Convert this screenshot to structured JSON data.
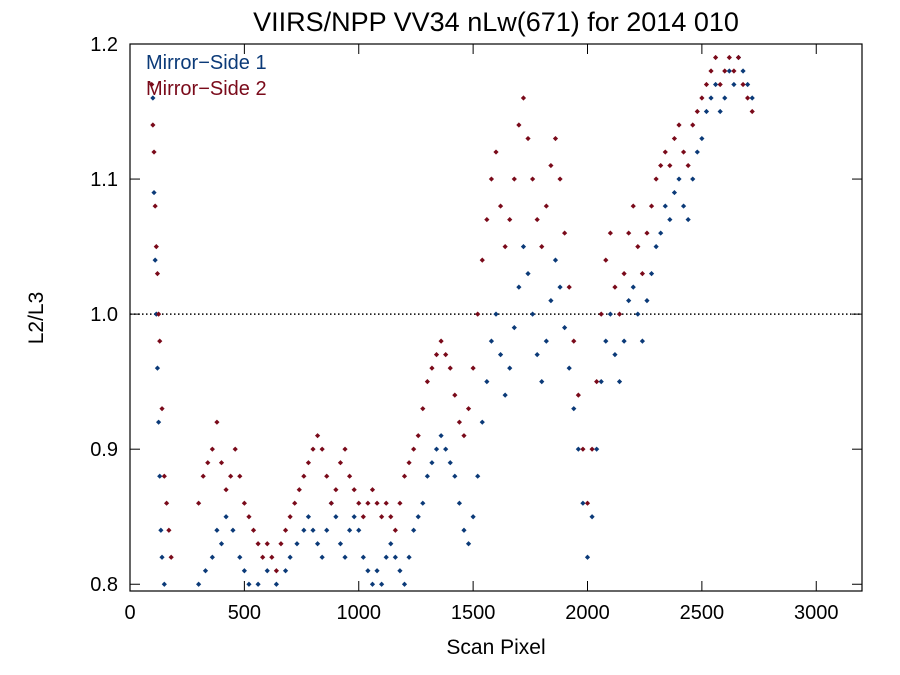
{
  "chart_data": {
    "type": "scatter",
    "title": "VIIRS/NPP VV34 nLw(671) for 2014 010",
    "xlabel": "Scan Pixel",
    "ylabel": "L2/L3",
    "xlim": [
      0,
      3200
    ],
    "ylim": [
      0.795,
      1.2
    ],
    "xticks": [
      0,
      500,
      1000,
      1500,
      2000,
      2500,
      3000
    ],
    "yticks": [
      0.8,
      0.9,
      1.0,
      1.1,
      1.2
    ],
    "xtick_labels": [
      "0",
      "500",
      "1000",
      "1500",
      "2000",
      "2500",
      "3000"
    ],
    "ytick_labels": [
      "0.8",
      "0.9",
      "1.0",
      "1.1",
      "1.2"
    ],
    "reference_line": {
      "y": 1.0,
      "style": "dotted"
    },
    "legend_position": "top-left",
    "grid": false,
    "series": [
      {
        "name": "Mirror−Side 1",
        "color": "#0b3a78",
        "marker": "diamond",
        "points": [
          [
            100,
            1.16
          ],
          [
            105,
            1.09
          ],
          [
            110,
            1.04
          ],
          [
            115,
            1.0
          ],
          [
            120,
            0.96
          ],
          [
            125,
            0.92
          ],
          [
            130,
            0.88
          ],
          [
            135,
            0.84
          ],
          [
            140,
            0.82
          ],
          [
            150,
            0.8
          ],
          [
            300,
            0.8
          ],
          [
            330,
            0.81
          ],
          [
            360,
            0.82
          ],
          [
            380,
            0.84
          ],
          [
            400,
            0.83
          ],
          [
            420,
            0.85
          ],
          [
            450,
            0.84
          ],
          [
            480,
            0.82
          ],
          [
            500,
            0.81
          ],
          [
            520,
            0.8
          ],
          [
            560,
            0.8
          ],
          [
            600,
            0.81
          ],
          [
            640,
            0.8
          ],
          [
            680,
            0.81
          ],
          [
            700,
            0.82
          ],
          [
            730,
            0.83
          ],
          [
            760,
            0.84
          ],
          [
            780,
            0.85
          ],
          [
            800,
            0.84
          ],
          [
            820,
            0.83
          ],
          [
            840,
            0.82
          ],
          [
            860,
            0.84
          ],
          [
            880,
            0.86
          ],
          [
            900,
            0.85
          ],
          [
            920,
            0.83
          ],
          [
            940,
            0.82
          ],
          [
            960,
            0.84
          ],
          [
            980,
            0.85
          ],
          [
            1000,
            0.84
          ],
          [
            1020,
            0.82
          ],
          [
            1040,
            0.81
          ],
          [
            1060,
            0.8
          ],
          [
            1080,
            0.81
          ],
          [
            1100,
            0.8
          ],
          [
            1120,
            0.82
          ],
          [
            1140,
            0.83
          ],
          [
            1160,
            0.82
          ],
          [
            1180,
            0.81
          ],
          [
            1200,
            0.8
          ],
          [
            1220,
            0.82
          ],
          [
            1240,
            0.84
          ],
          [
            1260,
            0.85
          ],
          [
            1280,
            0.86
          ],
          [
            1300,
            0.88
          ],
          [
            1320,
            0.89
          ],
          [
            1340,
            0.9
          ],
          [
            1360,
            0.91
          ],
          [
            1380,
            0.9
          ],
          [
            1400,
            0.89
          ],
          [
            1420,
            0.88
          ],
          [
            1440,
            0.86
          ],
          [
            1460,
            0.84
          ],
          [
            1480,
            0.83
          ],
          [
            1500,
            0.85
          ],
          [
            1520,
            0.88
          ],
          [
            1540,
            0.92
          ],
          [
            1560,
            0.95
          ],
          [
            1580,
            0.98
          ],
          [
            1600,
            1.0
          ],
          [
            1620,
            0.97
          ],
          [
            1640,
            0.94
          ],
          [
            1660,
            0.96
          ],
          [
            1680,
            0.99
          ],
          [
            1700,
            1.02
          ],
          [
            1720,
            1.05
          ],
          [
            1740,
            1.03
          ],
          [
            1760,
            1.0
          ],
          [
            1780,
            0.97
          ],
          [
            1800,
            0.95
          ],
          [
            1820,
            0.98
          ],
          [
            1840,
            1.01
          ],
          [
            1860,
            1.04
          ],
          [
            1880,
            1.02
          ],
          [
            1900,
            0.99
          ],
          [
            1920,
            0.96
          ],
          [
            1940,
            0.93
          ],
          [
            1960,
            0.9
          ],
          [
            1980,
            0.86
          ],
          [
            2000,
            0.82
          ],
          [
            2020,
            0.85
          ],
          [
            2040,
            0.9
          ],
          [
            2060,
            0.95
          ],
          [
            2080,
            0.98
          ],
          [
            2100,
            1.0
          ],
          [
            2120,
            0.97
          ],
          [
            2140,
            0.95
          ],
          [
            2160,
            0.98
          ],
          [
            2180,
            1.01
          ],
          [
            2200,
            1.02
          ],
          [
            2220,
            1.0
          ],
          [
            2240,
            0.98
          ],
          [
            2260,
            1.01
          ],
          [
            2280,
            1.03
          ],
          [
            2300,
            1.05
          ],
          [
            2320,
            1.06
          ],
          [
            2340,
            1.08
          ],
          [
            2360,
            1.07
          ],
          [
            2380,
            1.09
          ],
          [
            2400,
            1.1
          ],
          [
            2420,
            1.08
          ],
          [
            2440,
            1.07
          ],
          [
            2460,
            1.1
          ],
          [
            2480,
            1.12
          ],
          [
            2500,
            1.13
          ],
          [
            2520,
            1.15
          ],
          [
            2540,
            1.16
          ],
          [
            2560,
            1.17
          ],
          [
            2580,
            1.15
          ],
          [
            2600,
            1.16
          ],
          [
            2620,
            1.18
          ],
          [
            2640,
            1.17
          ],
          [
            2660,
            1.19
          ],
          [
            2680,
            1.18
          ],
          [
            2700,
            1.17
          ],
          [
            2720,
            1.16
          ]
        ]
      },
      {
        "name": "Mirror−Side 2",
        "color": "#7a0a1a",
        "marker": "diamond",
        "points": [
          [
            95,
            1.17
          ],
          [
            100,
            1.14
          ],
          [
            105,
            1.12
          ],
          [
            110,
            1.08
          ],
          [
            115,
            1.05
          ],
          [
            120,
            1.03
          ],
          [
            125,
            1.0
          ],
          [
            130,
            0.98
          ],
          [
            140,
            0.93
          ],
          [
            150,
            0.88
          ],
          [
            160,
            0.86
          ],
          [
            170,
            0.84
          ],
          [
            180,
            0.82
          ],
          [
            300,
            0.86
          ],
          [
            320,
            0.88
          ],
          [
            340,
            0.89
          ],
          [
            360,
            0.9
          ],
          [
            380,
            0.92
          ],
          [
            400,
            0.89
          ],
          [
            420,
            0.87
          ],
          [
            440,
            0.88
          ],
          [
            460,
            0.9
          ],
          [
            480,
            0.88
          ],
          [
            500,
            0.86
          ],
          [
            520,
            0.85
          ],
          [
            540,
            0.84
          ],
          [
            560,
            0.83
          ],
          [
            580,
            0.82
          ],
          [
            600,
            0.83
          ],
          [
            620,
            0.82
          ],
          [
            640,
            0.81
          ],
          [
            660,
            0.83
          ],
          [
            680,
            0.84
          ],
          [
            700,
            0.85
          ],
          [
            720,
            0.86
          ],
          [
            740,
            0.87
          ],
          [
            760,
            0.88
          ],
          [
            780,
            0.89
          ],
          [
            800,
            0.9
          ],
          [
            820,
            0.91
          ],
          [
            840,
            0.9
          ],
          [
            860,
            0.88
          ],
          [
            880,
            0.86
          ],
          [
            900,
            0.87
          ],
          [
            920,
            0.89
          ],
          [
            940,
            0.9
          ],
          [
            960,
            0.88
          ],
          [
            980,
            0.87
          ],
          [
            1000,
            0.86
          ],
          [
            1020,
            0.85
          ],
          [
            1040,
            0.86
          ],
          [
            1060,
            0.87
          ],
          [
            1080,
            0.86
          ],
          [
            1100,
            0.85
          ],
          [
            1120,
            0.86
          ],
          [
            1140,
            0.85
          ],
          [
            1160,
            0.84
          ],
          [
            1180,
            0.86
          ],
          [
            1200,
            0.88
          ],
          [
            1220,
            0.89
          ],
          [
            1240,
            0.9
          ],
          [
            1260,
            0.91
          ],
          [
            1280,
            0.93
          ],
          [
            1300,
            0.95
          ],
          [
            1320,
            0.96
          ],
          [
            1340,
            0.97
          ],
          [
            1360,
            0.98
          ],
          [
            1380,
            0.97
          ],
          [
            1400,
            0.96
          ],
          [
            1420,
            0.94
          ],
          [
            1440,
            0.92
          ],
          [
            1460,
            0.91
          ],
          [
            1480,
            0.93
          ],
          [
            1500,
            0.96
          ],
          [
            1520,
            1.0
          ],
          [
            1540,
            1.04
          ],
          [
            1560,
            1.07
          ],
          [
            1580,
            1.1
          ],
          [
            1600,
            1.12
          ],
          [
            1620,
            1.08
          ],
          [
            1640,
            1.05
          ],
          [
            1660,
            1.07
          ],
          [
            1680,
            1.1
          ],
          [
            1700,
            1.14
          ],
          [
            1720,
            1.16
          ],
          [
            1740,
            1.13
          ],
          [
            1760,
            1.1
          ],
          [
            1780,
            1.07
          ],
          [
            1800,
            1.05
          ],
          [
            1820,
            1.08
          ],
          [
            1840,
            1.11
          ],
          [
            1860,
            1.13
          ],
          [
            1880,
            1.1
          ],
          [
            1900,
            1.06
          ],
          [
            1920,
            1.02
          ],
          [
            1940,
            0.98
          ],
          [
            1960,
            0.94
          ],
          [
            1980,
            0.9
          ],
          [
            2000,
            0.86
          ],
          [
            2020,
            0.9
          ],
          [
            2040,
            0.95
          ],
          [
            2060,
            1.0
          ],
          [
            2080,
            1.04
          ],
          [
            2100,
            1.06
          ],
          [
            2120,
            1.02
          ],
          [
            2140,
            1.0
          ],
          [
            2160,
            1.03
          ],
          [
            2180,
            1.06
          ],
          [
            2200,
            1.08
          ],
          [
            2220,
            1.05
          ],
          [
            2240,
            1.03
          ],
          [
            2260,
            1.06
          ],
          [
            2280,
            1.08
          ],
          [
            2300,
            1.1
          ],
          [
            2320,
            1.11
          ],
          [
            2340,
            1.12
          ],
          [
            2360,
            1.11
          ],
          [
            2380,
            1.13
          ],
          [
            2400,
            1.14
          ],
          [
            2420,
            1.12
          ],
          [
            2440,
            1.11
          ],
          [
            2460,
            1.14
          ],
          [
            2480,
            1.15
          ],
          [
            2500,
            1.16
          ],
          [
            2520,
            1.17
          ],
          [
            2540,
            1.18
          ],
          [
            2560,
            1.19
          ],
          [
            2580,
            1.17
          ],
          [
            2600,
            1.18
          ],
          [
            2620,
            1.19
          ],
          [
            2640,
            1.18
          ],
          [
            2660,
            1.19
          ],
          [
            2680,
            1.17
          ],
          [
            2700,
            1.16
          ],
          [
            2720,
            1.15
          ]
        ]
      }
    ]
  }
}
